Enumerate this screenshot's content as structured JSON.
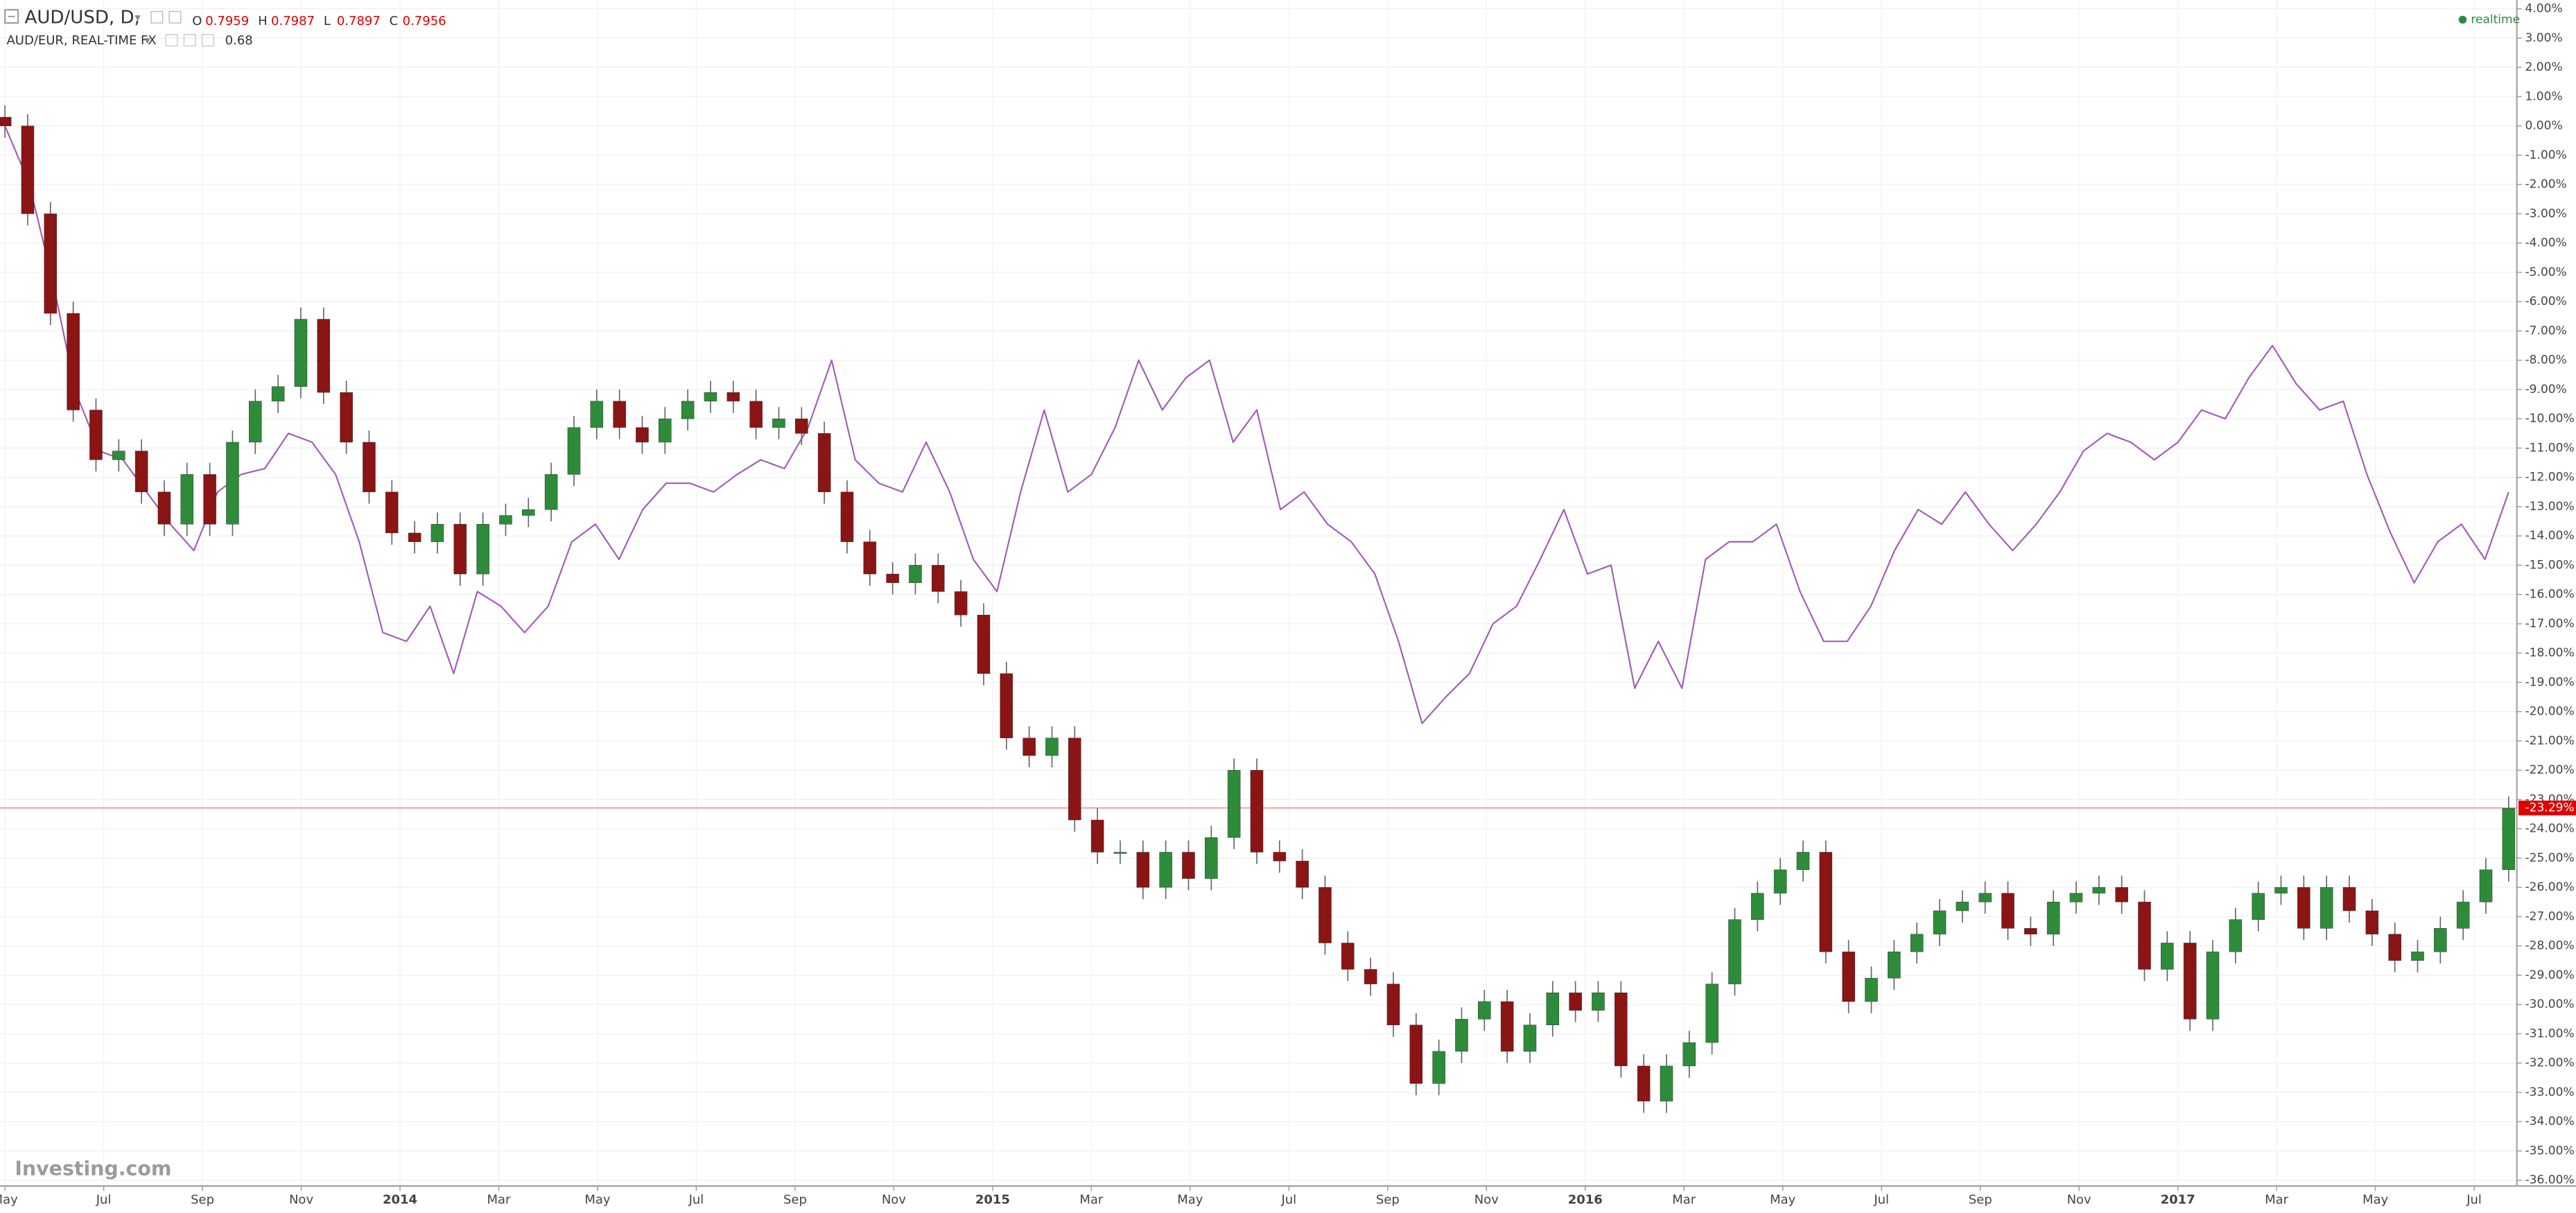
{
  "chart_data": {
    "type": "candlestick",
    "title": "AUD/USD, D,",
    "ohlc_legend": [
      {
        "label": "O",
        "value": 0.7959
      },
      {
        "label": "H",
        "value": 0.7987
      },
      {
        "label": "L",
        "value": 0.7897
      },
      {
        "label": "C",
        "value": 0.7956
      }
    ],
    "status": "realtime",
    "watermark": "Investing.com",
    "xtick_labels": [
      "May",
      "Jul",
      "Sep",
      "Nov",
      "2014",
      "Mar",
      "May",
      "Jul",
      "Sep",
      "Nov",
      "2015",
      "Mar",
      "May",
      "Jul",
      "Sep",
      "Nov",
      "2016",
      "Mar",
      "May",
      "Jul",
      "Sep",
      "Nov",
      "2017",
      "Mar",
      "May",
      "Jul"
    ],
    "ylim": [
      -36.2,
      4.3
    ],
    "yticks": [
      {
        "value": 4,
        "label": "4.00%"
      },
      {
        "value": 3,
        "label": "3.00%"
      },
      {
        "value": 2,
        "label": "2.00%"
      },
      {
        "value": 1,
        "label": "1.00%"
      },
      {
        "value": 0,
        "label": "0.00%"
      },
      {
        "value": -1,
        "label": "-1.00%"
      },
      {
        "value": -2,
        "label": "-2.00%"
      },
      {
        "value": -3,
        "label": "-3.00%"
      },
      {
        "value": -4,
        "label": "-4.00%"
      },
      {
        "value": -5,
        "label": "-5.00%"
      },
      {
        "value": -6,
        "label": "-6.00%"
      },
      {
        "value": -7,
        "label": "-7.00%"
      },
      {
        "value": -8,
        "label": "-8.00%"
      },
      {
        "value": -9,
        "label": "-9.00%"
      },
      {
        "value": -10,
        "label": "-10.00%"
      },
      {
        "value": -11,
        "label": "-11.00%"
      },
      {
        "value": -12,
        "label": "-12.00%"
      },
      {
        "value": -13,
        "label": "-13.00%"
      },
      {
        "value": -14,
        "label": "-14.00%"
      },
      {
        "value": -15,
        "label": "-15.00%"
      },
      {
        "value": -16,
        "label": "-16.00%"
      },
      {
        "value": -17,
        "label": "-17.00%"
      },
      {
        "value": -18,
        "label": "-18.00%"
      },
      {
        "value": -19,
        "label": "-19.00%"
      },
      {
        "value": -20,
        "label": "-20.00%"
      },
      {
        "value": -21,
        "label": "-21.00%"
      },
      {
        "value": -22,
        "label": "-22.00%"
      },
      {
        "value": -23,
        "label": "-23.00%"
      },
      {
        "value": -24,
        "label": "-24.00%"
      },
      {
        "value": -25,
        "label": "-25.00%"
      },
      {
        "value": -26,
        "label": "-26.00%"
      },
      {
        "value": -27,
        "label": "-27.00%"
      },
      {
        "value": -28,
        "label": "-28.00%"
      },
      {
        "value": -29,
        "label": "-29.00%"
      },
      {
        "value": -30,
        "label": "-30.00%"
      },
      {
        "value": -31,
        "label": "-31.00%"
      },
      {
        "value": -32,
        "label": "-32.00%"
      },
      {
        "value": -33,
        "label": "-33.00%"
      },
      {
        "value": -34,
        "label": "-34.00%"
      },
      {
        "value": -35,
        "label": "-35.00%"
      },
      {
        "value": -36,
        "label": "-36.00%"
      }
    ],
    "grid": true,
    "current": {
      "value": -23.29,
      "label": "-23.29%",
      "color": "#e00000"
    },
    "series": [
      {
        "name": "AUD/USD",
        "type": "candlestick",
        "up_color": "#2e8b3a",
        "down_color": "#8b1414",
        "wick_color": "#666666",
        "open": [
          0.3,
          0,
          -3.0,
          -6.4,
          -9.7,
          -11.4,
          -11.1,
          -12.5,
          -13.6,
          -11.9,
          -13.6,
          -10.8,
          -9.4,
          -8.9,
          -6.6,
          -9.1,
          -10.8,
          -12.5,
          -13.9,
          -14.2,
          -13.6,
          -15.3,
          -13.6,
          -13.3,
          -13.1,
          -11.9,
          -10.3,
          -9.4,
          -10.3,
          -10.8,
          -10.0,
          -9.4,
          -9.1,
          -9.4,
          -10.3,
          -10.0,
          -10.5,
          -12.5,
          -14.2,
          -15.3,
          -15.6,
          -15.0,
          -15.9,
          -16.7,
          -18.7,
          -20.9,
          -21.5,
          -20.9,
          -23.7,
          -24.8,
          -24.8,
          -26.0,
          -24.8,
          -25.7,
          -24.3,
          -22.0,
          -24.8,
          -25.1,
          -26.0,
          -27.9,
          -28.8,
          -29.3,
          -30.7,
          -32.7,
          -31.6,
          -30.5,
          -29.9,
          -31.6,
          -30.7,
          -29.6,
          -30.2,
          -29.6,
          -32.1,
          -33.3,
          -32.1,
          -31.3,
          -29.3,
          -27.1,
          -26.2,
          -25.4,
          -24.8,
          -28.2,
          -29.9,
          -29.1,
          -28.2,
          -27.6,
          -26.8,
          -26.5,
          -26.2,
          -27.4,
          -27.6,
          -26.5,
          -26.2,
          -26.0,
          -26.5,
          -28.8,
          -27.9,
          -30.5,
          -28.2,
          -27.1,
          -26.2,
          -26.0,
          -27.4,
          -26.0,
          -26.8,
          -27.6,
          -28.5,
          -28.2,
          -27.4,
          -26.5,
          -25.4
        ],
        "high": [
          0.7,
          0.4,
          -2.6,
          -6.0,
          -9.3,
          -10.7,
          -10.7,
          -12.1,
          -11.5,
          -11.5,
          -10.4,
          -9.0,
          -8.5,
          -6.2,
          -6.2,
          -8.7,
          -10.4,
          -12.1,
          -13.5,
          -13.2,
          -13.2,
          -13.2,
          -12.9,
          -12.7,
          -11.5,
          -9.9,
          -9.0,
          -9.0,
          -9.9,
          -9.6,
          -9.0,
          -8.7,
          -8.7,
          -9.0,
          -9.6,
          -9.6,
          -10.1,
          -12.1,
          -13.8,
          -14.9,
          -14.6,
          -14.6,
          -15.5,
          -16.3,
          -18.3,
          -20.5,
          -20.5,
          -20.5,
          -23.3,
          -24.4,
          -24.4,
          -24.4,
          -24.4,
          -23.9,
          -21.6,
          -21.6,
          -24.4,
          -24.7,
          -25.6,
          -27.5,
          -28.4,
          -28.9,
          -30.3,
          -31.2,
          -30.1,
          -29.5,
          -29.5,
          -30.3,
          -29.2,
          -29.2,
          -29.2,
          -29.2,
          -31.7,
          -31.7,
          -30.9,
          -28.9,
          -26.7,
          -25.8,
          -25.0,
          -24.4,
          -24.4,
          -27.8,
          -28.7,
          -27.8,
          -27.2,
          -26.4,
          -26.1,
          -25.8,
          -25.8,
          -27.0,
          -26.1,
          -25.8,
          -25.6,
          -25.6,
          -26.1,
          -27.5,
          -27.5,
          -27.8,
          -26.7,
          -25.8,
          -25.6,
          -25.6,
          -25.6,
          -25.6,
          -26.4,
          -27.2,
          -27.8,
          -27.0,
          -26.1,
          -25.0,
          -22.9
        ],
        "low": [
          -0.4,
          -3.4,
          -6.8,
          -10.1,
          -11.8,
          -11.8,
          -12.9,
          -14.0,
          -14.0,
          -14.0,
          -14.0,
          -11.2,
          -9.8,
          -9.3,
          -9.5,
          -11.2,
          -12.9,
          -14.3,
          -14.6,
          -14.6,
          -15.7,
          -15.7,
          -14.0,
          -13.7,
          -13.5,
          -12.3,
          -10.7,
          -10.7,
          -11.2,
          -11.2,
          -10.4,
          -9.8,
          -9.8,
          -10.7,
          -10.7,
          -10.9,
          -12.9,
          -14.6,
          -15.7,
          -16.0,
          -16.0,
          -16.3,
          -17.1,
          -19.1,
          -21.3,
          -21.9,
          -21.9,
          -24.1,
          -25.2,
          -25.2,
          -26.4,
          -26.4,
          -26.1,
          -26.1,
          -24.7,
          -25.2,
          -25.5,
          -26.4,
          -28.3,
          -29.2,
          -29.7,
          -31.1,
          -33.1,
          -33.1,
          -32.0,
          -30.9,
          -32.0,
          -32.0,
          -31.1,
          -30.6,
          -30.6,
          -32.5,
          -33.7,
          -33.7,
          -32.5,
          -31.7,
          -29.7,
          -27.5,
          -26.6,
          -25.8,
          -28.6,
          -30.3,
          -30.3,
          -29.5,
          -28.6,
          -28.0,
          -27.2,
          -26.9,
          -27.8,
          -28.0,
          -28.0,
          -26.9,
          -26.6,
          -26.9,
          -29.2,
          -29.2,
          -30.9,
          -30.9,
          -28.6,
          -27.5,
          -26.6,
          -27.8,
          -27.8,
          -27.2,
          -28.0,
          -28.9,
          -28.9,
          -28.6,
          -27.8,
          -26.9,
          -25.8
        ],
        "close": [
          0,
          -3.0,
          -6.4,
          -9.7,
          -11.4,
          -11.1,
          -12.5,
          -13.6,
          -11.9,
          -13.6,
          -10.8,
          -9.4,
          -8.9,
          -6.6,
          -9.1,
          -10.8,
          -12.5,
          -13.9,
          -14.2,
          -13.6,
          -15.3,
          -13.6,
          -13.3,
          -13.1,
          -11.9,
          -10.3,
          -9.4,
          -10.3,
          -10.8,
          -10.0,
          -9.4,
          -9.1,
          -9.4,
          -10.3,
          -10.0,
          -10.5,
          -12.5,
          -14.2,
          -15.3,
          -15.6,
          -15.0,
          -15.9,
          -16.7,
          -18.7,
          -20.9,
          -21.5,
          -20.9,
          -23.7,
          -24.8,
          -24.8,
          -26.0,
          -24.8,
          -25.7,
          -24.3,
          -22.0,
          -24.8,
          -25.1,
          -26.0,
          -27.9,
          -28.8,
          -29.3,
          -30.7,
          -32.7,
          -31.6,
          -30.5,
          -29.9,
          -31.6,
          -30.7,
          -29.6,
          -30.2,
          -29.6,
          -32.1,
          -33.3,
          -32.1,
          -31.3,
          -29.3,
          -27.1,
          -26.2,
          -25.4,
          -24.8,
          -28.2,
          -29.9,
          -29.1,
          -28.2,
          -27.6,
          -26.8,
          -26.5,
          -26.2,
          -27.4,
          -27.6,
          -26.5,
          -26.2,
          -26.0,
          -26.5,
          -28.8,
          -27.9,
          -30.5,
          -28.2,
          -27.1,
          -26.2,
          -26.0,
          -27.4,
          -26.0,
          -26.8,
          -27.6,
          -28.5,
          -28.2,
          -27.4,
          -26.5,
          -25.4,
          -23.3
        ]
      },
      {
        "name": "AUD/EUR, REAL-TIME FX",
        "type": "line",
        "color": "#a25bb5",
        "last_value": 0.68,
        "values": [
          0,
          -1.9,
          -5.2,
          -9.1,
          -11.1,
          -11.4,
          -12.5,
          -13.6,
          -14.5,
          -12.5,
          -11.9,
          -11.7,
          -10.5,
          -10.8,
          -11.9,
          -14.2,
          -17.3,
          -17.6,
          -16.4,
          -18.7,
          -15.9,
          -16.4,
          -17.3,
          -16.4,
          -14.2,
          -13.6,
          -14.8,
          -13.1,
          -12.2,
          -12.2,
          -12.5,
          -11.9,
          -11.4,
          -11.7,
          -10.3,
          -8.0,
          -11.4,
          -12.2,
          -12.5,
          -10.8,
          -12.5,
          -14.8,
          -15.9,
          -12.5,
          -9.7,
          -12.5,
          -11.9,
          -10.3,
          -8.0,
          -9.7,
          -8.6,
          -8.0,
          -10.8,
          -9.7,
          -13.1,
          -12.5,
          -13.6,
          -14.2,
          -15.3,
          -17.6,
          -20.4,
          -19.5,
          -18.7,
          -17.0,
          -16.4,
          -14.8,
          -13.1,
          -15.3,
          -15.0,
          -19.2,
          -17.6,
          -19.2,
          -14.8,
          -14.2,
          -14.2,
          -13.6,
          -15.9,
          -17.6,
          -17.6,
          -16.4,
          -14.5,
          -13.1,
          -13.6,
          -12.5,
          -13.6,
          -14.5,
          -13.6,
          -12.5,
          -11.1,
          -10.5,
          -10.8,
          -11.4,
          -10.8,
          -9.7,
          -10.0,
          -8.6,
          -7.5,
          -8.8,
          -9.7,
          -9.4,
          -11.9,
          -13.9,
          -15.6,
          -14.2,
          -13.6,
          -14.8,
          -12.5
        ]
      }
    ]
  }
}
